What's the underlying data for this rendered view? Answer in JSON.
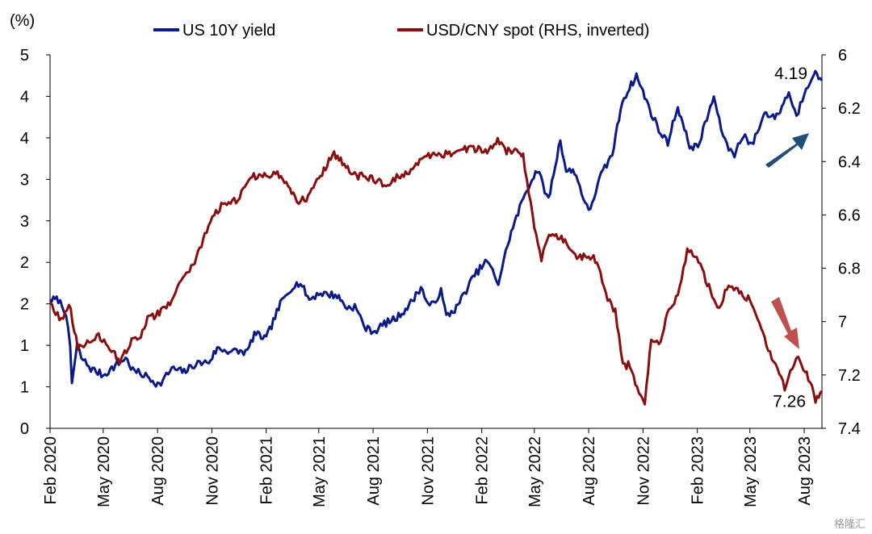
{
  "chart_data": {
    "type": "line",
    "left_axis_unit": "(%)",
    "y_left_ticks": [
      "0",
      "1",
      "1",
      "2",
      "2",
      "3",
      "3",
      "4",
      "4",
      "5"
    ],
    "y_left_range": [
      0,
      4.5
    ],
    "y_right_ticks": [
      "6",
      "6.2",
      "6.4",
      "6.6",
      "6.8",
      "7",
      "7.2",
      "7.4"
    ],
    "y_right_range": [
      6.0,
      7.4
    ],
    "y_right_inverted": true,
    "x_range": [
      "2020-02-01",
      "2023-08-31"
    ],
    "x_tick_labels": [
      "Feb 2020",
      "May 2020",
      "Aug 2020",
      "Nov 2020",
      "Feb 2021",
      "May 2021",
      "Aug 2021",
      "Nov 2021",
      "Feb 2022",
      "May 2022",
      "Aug 2022",
      "Nov 2022",
      "Feb 2023",
      "May 2023",
      "Aug 2023"
    ],
    "x_tick_dates": [
      "2020-02-01",
      "2020-05-01",
      "2020-08-01",
      "2020-11-01",
      "2021-02-01",
      "2021-05-01",
      "2021-08-01",
      "2021-11-01",
      "2022-02-01",
      "2022-05-01",
      "2022-08-01",
      "2022-11-01",
      "2023-02-01",
      "2023-05-01",
      "2023-08-01"
    ],
    "legend_position": "top",
    "grid": false,
    "series": [
      {
        "name": "US 10Y yield",
        "axis": "left",
        "color": "#0a1a8c",
        "points": [
          [
            "2020-02-01",
            1.55
          ],
          [
            "2020-02-15",
            1.55
          ],
          [
            "2020-02-28",
            1.4
          ],
          [
            "2020-03-06",
            0.95
          ],
          [
            "2020-03-09",
            0.55
          ],
          [
            "2020-03-18",
            1.0
          ],
          [
            "2020-03-25",
            0.85
          ],
          [
            "2020-04-10",
            0.72
          ],
          [
            "2020-05-01",
            0.64
          ],
          [
            "2020-06-08",
            0.85
          ],
          [
            "2020-06-20",
            0.7
          ],
          [
            "2020-07-15",
            0.62
          ],
          [
            "2020-08-04",
            0.52
          ],
          [
            "2020-08-25",
            0.72
          ],
          [
            "2020-09-15",
            0.68
          ],
          [
            "2020-10-05",
            0.78
          ],
          [
            "2020-10-27",
            0.8
          ],
          [
            "2020-11-10",
            0.96
          ],
          [
            "2020-12-01",
            0.93
          ],
          [
            "2020-12-31",
            0.92
          ],
          [
            "2021-01-12",
            1.14
          ],
          [
            "2021-02-01",
            1.08
          ],
          [
            "2021-02-25",
            1.5
          ],
          [
            "2021-03-18",
            1.72
          ],
          [
            "2021-03-31",
            1.75
          ],
          [
            "2021-04-15",
            1.55
          ],
          [
            "2021-05-01",
            1.63
          ],
          [
            "2021-06-01",
            1.6
          ],
          [
            "2021-06-18",
            1.45
          ],
          [
            "2021-07-01",
            1.47
          ],
          [
            "2021-07-20",
            1.2
          ],
          [
            "2021-08-04",
            1.17
          ],
          [
            "2021-08-20",
            1.26
          ],
          [
            "2021-09-10",
            1.33
          ],
          [
            "2021-10-01",
            1.48
          ],
          [
            "2021-10-21",
            1.7
          ],
          [
            "2021-11-05",
            1.45
          ],
          [
            "2021-11-24",
            1.65
          ],
          [
            "2021-12-03",
            1.35
          ],
          [
            "2021-12-20",
            1.45
          ],
          [
            "2022-01-03",
            1.63
          ],
          [
            "2022-01-20",
            1.85
          ],
          [
            "2022-02-10",
            2.02
          ],
          [
            "2022-03-01",
            1.75
          ],
          [
            "2022-03-20",
            2.3
          ],
          [
            "2022-04-15",
            2.83
          ],
          [
            "2022-05-06",
            3.12
          ],
          [
            "2022-05-25",
            2.75
          ],
          [
            "2022-06-14",
            3.48
          ],
          [
            "2022-06-24",
            3.1
          ],
          [
            "2022-07-08",
            3.1
          ],
          [
            "2022-08-01",
            2.6
          ],
          [
            "2022-08-22",
            3.05
          ],
          [
            "2022-09-10",
            3.3
          ],
          [
            "2022-09-27",
            3.95
          ],
          [
            "2022-10-21",
            4.25
          ],
          [
            "2022-11-01",
            4.05
          ],
          [
            "2022-11-15",
            3.8
          ],
          [
            "2022-12-01",
            3.55
          ],
          [
            "2022-12-13",
            3.45
          ],
          [
            "2022-12-30",
            3.88
          ],
          [
            "2023-01-10",
            3.6
          ],
          [
            "2023-01-19",
            3.4
          ],
          [
            "2023-02-02",
            3.39
          ],
          [
            "2023-03-01",
            4.0
          ],
          [
            "2023-03-10",
            3.7
          ],
          [
            "2023-03-23",
            3.4
          ],
          [
            "2023-04-05",
            3.3
          ],
          [
            "2023-04-20",
            3.55
          ],
          [
            "2023-05-04",
            3.4
          ],
          [
            "2023-05-26",
            3.8
          ],
          [
            "2023-06-15",
            3.75
          ],
          [
            "2023-07-06",
            4.05
          ],
          [
            "2023-07-19",
            3.75
          ],
          [
            "2023-08-01",
            4.05
          ],
          [
            "2023-08-17",
            4.29
          ],
          [
            "2023-08-31",
            4.19
          ]
        ]
      },
      {
        "name": "USD/CNY spot (RHS, inverted)",
        "axis": "right",
        "color": "#8b0d0d",
        "points": [
          [
            "2020-02-01",
            6.93
          ],
          [
            "2020-02-20",
            7.0
          ],
          [
            "2020-03-04",
            6.93
          ],
          [
            "2020-03-19",
            7.1
          ],
          [
            "2020-04-01",
            7.08
          ],
          [
            "2020-04-20",
            7.05
          ],
          [
            "2020-05-15",
            7.1
          ],
          [
            "2020-05-29",
            7.16
          ],
          [
            "2020-06-15",
            7.08
          ],
          [
            "2020-07-01",
            7.06
          ],
          [
            "2020-07-15",
            6.99
          ],
          [
            "2020-08-04",
            6.97
          ],
          [
            "2020-08-25",
            6.92
          ],
          [
            "2020-09-10",
            6.84
          ],
          [
            "2020-09-30",
            6.79
          ],
          [
            "2020-10-20",
            6.68
          ],
          [
            "2020-11-05",
            6.6
          ],
          [
            "2020-11-20",
            6.56
          ],
          [
            "2020-12-15",
            6.54
          ],
          [
            "2021-01-05",
            6.46
          ],
          [
            "2021-02-01",
            6.45
          ],
          [
            "2021-02-20",
            6.44
          ],
          [
            "2021-03-25",
            6.55
          ],
          [
            "2021-04-10",
            6.54
          ],
          [
            "2021-04-28",
            6.47
          ],
          [
            "2021-05-27",
            6.37
          ],
          [
            "2021-06-10",
            6.4
          ],
          [
            "2021-06-25",
            6.45
          ],
          [
            "2021-07-30",
            6.46
          ],
          [
            "2021-08-20",
            6.49
          ],
          [
            "2021-09-10",
            6.46
          ],
          [
            "2021-10-01",
            6.44
          ],
          [
            "2021-10-25",
            6.38
          ],
          [
            "2021-11-20",
            6.38
          ],
          [
            "2021-12-20",
            6.36
          ],
          [
            "2022-01-15",
            6.35
          ],
          [
            "2022-02-10",
            6.36
          ],
          [
            "2022-02-28",
            6.32
          ],
          [
            "2022-03-15",
            6.36
          ],
          [
            "2022-04-01",
            6.36
          ],
          [
            "2022-04-12",
            6.38
          ],
          [
            "2022-04-28",
            6.6
          ],
          [
            "2022-05-13",
            6.78
          ],
          [
            "2022-05-20",
            6.7
          ],
          [
            "2022-06-01",
            6.66
          ],
          [
            "2022-06-22",
            6.7
          ],
          [
            "2022-07-15",
            6.76
          ],
          [
            "2022-08-01",
            6.75
          ],
          [
            "2022-08-15",
            6.77
          ],
          [
            "2022-08-30",
            6.9
          ],
          [
            "2022-09-15",
            6.96
          ],
          [
            "2022-09-28",
            7.17
          ],
          [
            "2022-10-10",
            7.16
          ],
          [
            "2022-10-25",
            7.28
          ],
          [
            "2022-11-04",
            7.3
          ],
          [
            "2022-11-15",
            7.06
          ],
          [
            "2022-12-01",
            7.08
          ],
          [
            "2022-12-12",
            6.96
          ],
          [
            "2022-12-30",
            6.9
          ],
          [
            "2023-01-15",
            6.73
          ],
          [
            "2023-01-31",
            6.76
          ],
          [
            "2023-02-15",
            6.84
          ],
          [
            "2023-03-01",
            6.92
          ],
          [
            "2023-03-10",
            6.96
          ],
          [
            "2023-03-20",
            6.88
          ],
          [
            "2023-04-01",
            6.87
          ],
          [
            "2023-05-01",
            6.92
          ],
          [
            "2023-05-17",
            7.0
          ],
          [
            "2023-06-01",
            7.1
          ],
          [
            "2023-06-29",
            7.25
          ],
          [
            "2023-07-15",
            7.15
          ],
          [
            "2023-07-25",
            7.14
          ],
          [
            "2023-08-08",
            7.21
          ],
          [
            "2023-08-20",
            7.29
          ],
          [
            "2023-08-31",
            7.26
          ]
        ]
      }
    ],
    "annotations": [
      {
        "text": "4.19",
        "series": "US 10Y yield",
        "arrow": "up",
        "arrow_color": "#1f4e79"
      },
      {
        "text": "7.26",
        "series": "USD/CNY spot (RHS, inverted)",
        "arrow": "down",
        "arrow_color": "#c0504d"
      }
    ]
  },
  "watermark": "格隆汇"
}
